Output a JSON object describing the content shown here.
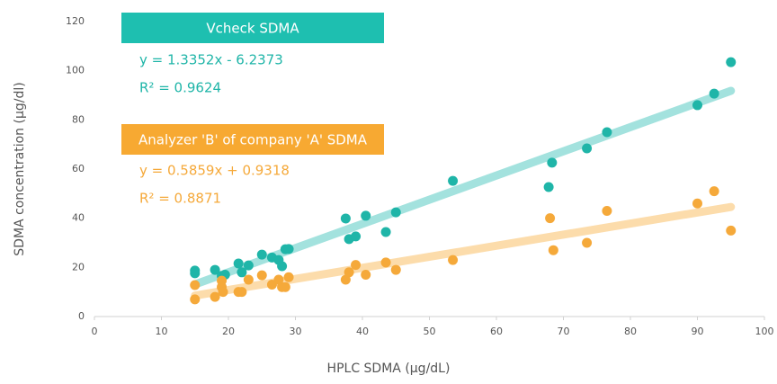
{
  "chart_data": {
    "type": "scatter",
    "xlabel": "HPLC SDMA (µg/dL)",
    "ylabel": "SDMA concentration (µg/dl)",
    "xlim": [
      0,
      100
    ],
    "xticks": [
      0,
      10,
      20,
      30,
      40,
      50,
      60,
      70,
      80,
      90,
      100
    ],
    "ylim": [
      0,
      120
    ],
    "yticks": [
      0,
      20,
      40,
      60,
      80,
      100,
      120
    ],
    "grid": false,
    "series": [
      {
        "name": "Vcheck SDMA",
        "color": "#1fb5a8",
        "trendline_color": "#a3e2de",
        "equation": "y = 1.3352x - 6.2373",
        "r2": "R² = 0.9624",
        "x": [
          15,
          15,
          18,
          19,
          19.5,
          21.5,
          22,
          23,
          25,
          26.5,
          27.5,
          28,
          28.5,
          29,
          37.5,
          38,
          39,
          40.5,
          43.5,
          45,
          53.5,
          67.8,
          68.3,
          73.5,
          76.5,
          90,
          92.5,
          95
        ],
        "values": [
          18.7,
          17.6,
          19,
          16.5,
          17,
          21.6,
          18,
          20.8,
          25.2,
          24,
          23,
          20.5,
          27.4,
          27.5,
          39.9,
          31.5,
          32.6,
          41,
          34.4,
          42.4,
          55.2,
          52.7,
          62.6,
          68.4,
          75,
          86,
          90.7,
          103.5
        ]
      },
      {
        "name": "Analyzer 'B' of company 'A' SDMA",
        "color": "#f5a93a",
        "trendline_color": "#fcdcab",
        "equation": "y = 0.5859x + 0.9318",
        "r2": "R² = 0.8871",
        "x": [
          15,
          15,
          18,
          19,
          19,
          19.2,
          21.5,
          22,
          23,
          25,
          26.5,
          27.5,
          28,
          28.5,
          29,
          37.5,
          38,
          39,
          40.5,
          43.5,
          45,
          53.5,
          68,
          68.5,
          73.5,
          76.5,
          90,
          92.5,
          95
        ],
        "values": [
          12.8,
          7,
          8,
          14.6,
          12,
          10,
          10,
          10,
          15,
          16.8,
          13,
          15,
          12,
          12,
          16,
          15,
          18,
          21,
          17,
          22,
          19,
          23,
          40,
          27,
          30,
          43,
          46,
          51,
          35
        ]
      }
    ]
  }
}
